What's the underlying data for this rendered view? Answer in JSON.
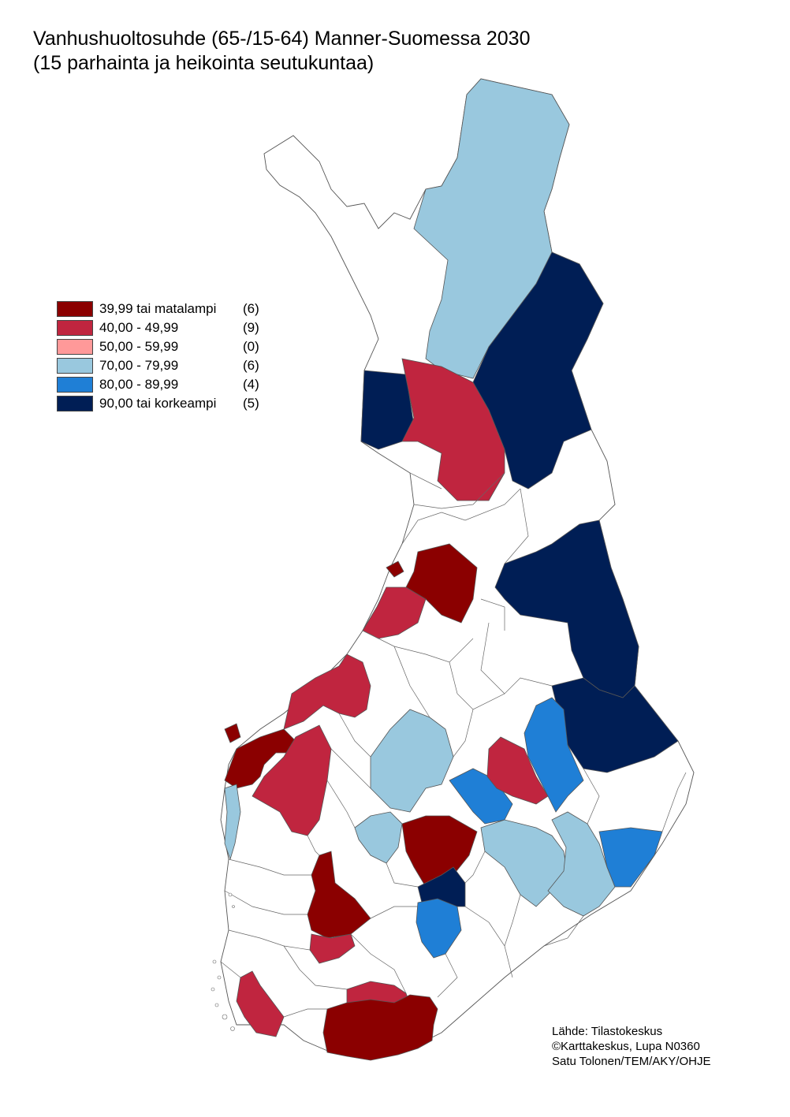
{
  "title": {
    "line1": "Vanhushuoltosuhde (65-/15-64) Manner-Suomessa 2030",
    "line2": "(15 parhainta ja heikointa seutukuntaa)"
  },
  "legend": [
    {
      "label": "39,99 tai matalampi",
      "count": "(6)",
      "color": "#8b0000"
    },
    {
      "label": "40,00 - 49,99",
      "count": "(9)",
      "color": "#c0253f"
    },
    {
      "label": "50,00 - 59,99",
      "count": "(0)",
      "color": "#ff9999"
    },
    {
      "label": "70,00 - 79,99",
      "count": "(6)",
      "color": "#99c8de"
    },
    {
      "label": "80,00 - 89,99",
      "count": "(4)",
      "color": "#1f7fd6"
    },
    {
      "label": "90,00 tai korkeampi",
      "count": "(5)",
      "color": "#001e55"
    }
  ],
  "source": {
    "line1": "Lähde: Tilastokeskus",
    "line2": "©Karttakeskus, Lupa N0360",
    "line3": "Satu Tolonen/TEM/AKY/OHJE"
  },
  "colors": {
    "background": "#ffffff",
    "border": "#555555",
    "no_data": "#ffffff"
  }
}
